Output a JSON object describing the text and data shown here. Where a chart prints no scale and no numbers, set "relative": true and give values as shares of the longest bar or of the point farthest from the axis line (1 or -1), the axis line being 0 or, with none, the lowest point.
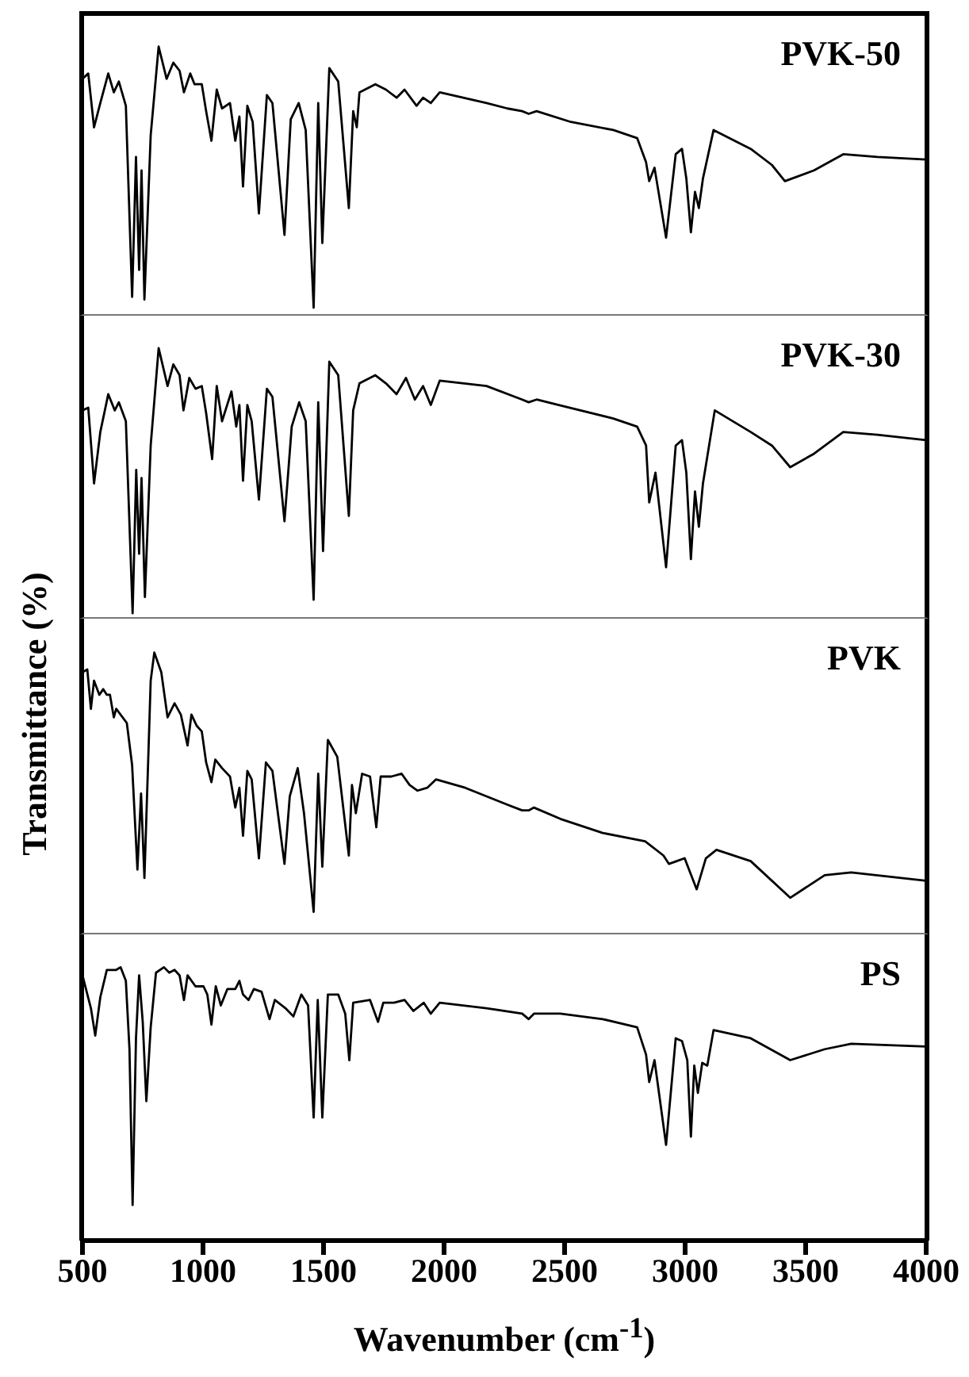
{
  "chart_data": [
    {
      "type": "line",
      "title": "PVK-50",
      "relative": true,
      "xlim": [
        500,
        4000
      ],
      "tick_labels": false,
      "marker": "none",
      "line_style": "solid",
      "x": [
        500,
        524,
        548,
        574,
        607,
        630,
        651,
        680,
        706,
        722,
        735,
        745,
        757,
        783,
        816,
        849,
        877,
        903,
        921,
        947,
        965,
        995,
        1013,
        1035,
        1057,
        1079,
        1112,
        1134,
        1151,
        1166,
        1184,
        1206,
        1232,
        1265,
        1288,
        1338,
        1364,
        1397,
        1426,
        1459,
        1478,
        1495,
        1524,
        1561,
        1605,
        1623,
        1638,
        1649,
        1715,
        1759,
        1803,
        1836,
        1886,
        1913,
        1945,
        1982,
        2176,
        2263,
        2324,
        2351,
        2384,
        2526,
        2702,
        2801,
        2838,
        2851,
        2873,
        2921,
        2961,
        2987,
        3005,
        3024,
        3041,
        3057,
        3074,
        3118,
        3272,
        3360,
        3414,
        3535,
        3656,
        3798,
        4000
      ],
      "series": [
        {
          "color": "#000000",
          "values": [
            0.88,
            0.9,
            0.7,
            0.79,
            0.9,
            0.83,
            0.87,
            0.78,
            0.07,
            0.59,
            0.17,
            0.54,
            0.06,
            0.67,
            1.0,
            0.88,
            0.94,
            0.91,
            0.83,
            0.9,
            0.86,
            0.86,
            0.76,
            0.65,
            0.84,
            0.77,
            0.79,
            0.65,
            0.74,
            0.48,
            0.78,
            0.72,
            0.38,
            0.82,
            0.79,
            0.3,
            0.73,
            0.79,
            0.69,
            0.03,
            0.79,
            0.27,
            0.92,
            0.87,
            0.4,
            0.76,
            0.7,
            0.83,
            0.86,
            0.84,
            0.81,
            0.84,
            0.78,
            0.81,
            0.79,
            0.83,
            0.79,
            0.77,
            0.76,
            0.75,
            0.76,
            0.72,
            0.69,
            0.66,
            0.57,
            0.5,
            0.55,
            0.29,
            0.6,
            0.62,
            0.51,
            0.31,
            0.46,
            0.4,
            0.51,
            0.69,
            0.62,
            0.56,
            0.5,
            0.54,
            0.6,
            0.59,
            0.58
          ]
        }
      ]
    },
    {
      "type": "line",
      "title": "PVK-30",
      "relative": true,
      "xlim": [
        500,
        4000
      ],
      "tick_labels": false,
      "marker": "none",
      "line_style": "solid",
      "x": [
        500,
        524,
        548,
        574,
        607,
        634,
        651,
        680,
        708,
        723,
        735,
        745,
        759,
        783,
        816,
        853,
        877,
        903,
        919,
        943,
        969,
        995,
        1013,
        1038,
        1057,
        1079,
        1118,
        1138,
        1151,
        1166,
        1184,
        1202,
        1232,
        1265,
        1288,
        1338,
        1368,
        1399,
        1426,
        1459,
        1478,
        1498,
        1524,
        1561,
        1605,
        1623,
        1649,
        1715,
        1759,
        1803,
        1842,
        1879,
        1913,
        1945,
        1982,
        2176,
        2324,
        2351,
        2384,
        2702,
        2801,
        2838,
        2851,
        2877,
        2921,
        2961,
        2987,
        3005,
        3024,
        3041,
        3057,
        3074,
        3123,
        3272,
        3360,
        3436,
        3535,
        3656,
        3798,
        4000
      ],
      "series": [
        {
          "color": "#000000",
          "values": [
            0.77,
            0.78,
            0.5,
            0.69,
            0.83,
            0.77,
            0.8,
            0.73,
            0.02,
            0.55,
            0.24,
            0.52,
            0.08,
            0.64,
            1.0,
            0.86,
            0.94,
            0.9,
            0.77,
            0.89,
            0.85,
            0.86,
            0.76,
            0.59,
            0.86,
            0.73,
            0.84,
            0.71,
            0.79,
            0.51,
            0.79,
            0.73,
            0.44,
            0.85,
            0.82,
            0.36,
            0.71,
            0.8,
            0.73,
            0.07,
            0.8,
            0.25,
            0.95,
            0.9,
            0.38,
            0.77,
            0.87,
            0.9,
            0.87,
            0.83,
            0.89,
            0.81,
            0.86,
            0.79,
            0.88,
            0.86,
            0.81,
            0.8,
            0.81,
            0.74,
            0.71,
            0.64,
            0.43,
            0.54,
            0.19,
            0.64,
            0.66,
            0.54,
            0.22,
            0.47,
            0.34,
            0.5,
            0.77,
            0.69,
            0.64,
            0.56,
            0.61,
            0.69,
            0.68,
            0.66
          ]
        }
      ]
    },
    {
      "type": "line",
      "title": "PVK",
      "ylabel": "Transmittance (%)",
      "relative": true,
      "xlim": [
        500,
        4000
      ],
      "tick_labels": false,
      "marker": "none",
      "line_style": "solid",
      "x": [
        500,
        520,
        535,
        548,
        570,
        586,
        601,
        614,
        630,
        640,
        684,
        706,
        728,
        743,
        757,
        772,
        783,
        798,
        827,
        853,
        882,
        908,
        936,
        952,
        974,
        995,
        1013,
        1035,
        1051,
        1079,
        1112,
        1134,
        1151,
        1166,
        1184,
        1202,
        1232,
        1261,
        1288,
        1338,
        1360,
        1393,
        1419,
        1459,
        1478,
        1495,
        1518,
        1557,
        1605,
        1618,
        1634,
        1660,
        1693,
        1719,
        1737,
        1781,
        1824,
        1857,
        1890,
        1930,
        1967,
        2088,
        2263,
        2324,
        2351,
        2373,
        2482,
        2658,
        2834,
        2910,
        2933,
        2965,
        2998,
        3048,
        3086,
        3130,
        3272,
        3436,
        3579,
        3689,
        4000
      ],
      "series": [
        {
          "color": "#000000",
          "values": [
            0.93,
            0.94,
            0.8,
            0.9,
            0.85,
            0.87,
            0.85,
            0.85,
            0.77,
            0.8,
            0.75,
            0.6,
            0.23,
            0.5,
            0.2,
            0.6,
            0.9,
            1.0,
            0.93,
            0.77,
            0.82,
            0.78,
            0.67,
            0.78,
            0.74,
            0.72,
            0.61,
            0.54,
            0.62,
            0.59,
            0.56,
            0.45,
            0.52,
            0.35,
            0.58,
            0.55,
            0.27,
            0.61,
            0.58,
            0.25,
            0.49,
            0.59,
            0.43,
            0.08,
            0.57,
            0.24,
            0.69,
            0.63,
            0.28,
            0.53,
            0.43,
            0.57,
            0.56,
            0.38,
            0.56,
            0.56,
            0.57,
            0.53,
            0.51,
            0.52,
            0.55,
            0.52,
            0.46,
            0.44,
            0.44,
            0.45,
            0.41,
            0.36,
            0.33,
            0.28,
            0.25,
            0.26,
            0.27,
            0.16,
            0.27,
            0.3,
            0.26,
            0.13,
            0.21,
            0.22,
            0.19
          ]
        }
      ]
    },
    {
      "type": "line",
      "title": "PS",
      "xlabel": "Wavenumber (cm$^{-1}$)",
      "relative": true,
      "xlim": [
        500,
        4000
      ],
      "xticks": [
        500,
        1000,
        1500,
        2000,
        2500,
        3000,
        3500,
        4000
      ],
      "tick_labels": "x",
      "marker": "none",
      "line_style": "solid",
      "x": [
        500,
        535,
        553,
        574,
        601,
        623,
        640,
        658,
        680,
        695,
        708,
        722,
        735,
        750,
        765,
        783,
        805,
        838,
        860,
        882,
        903,
        921,
        936,
        969,
        1002,
        1018,
        1035,
        1053,
        1074,
        1101,
        1134,
        1151,
        1166,
        1189,
        1211,
        1243,
        1276,
        1298,
        1342,
        1375,
        1408,
        1436,
        1459,
        1476,
        1495,
        1518,
        1561,
        1590,
        1607,
        1623,
        1693,
        1726,
        1748,
        1792,
        1836,
        1873,
        1916,
        1945,
        1982,
        2176,
        2324,
        2351,
        2373,
        2482,
        2658,
        2801,
        2838,
        2851,
        2873,
        2921,
        2961,
        2987,
        3009,
        3024,
        3038,
        3053,
        3071,
        3092,
        3118,
        3272,
        3436,
        3579,
        3689,
        4000
      ],
      "series": [
        {
          "color": "#000000",
          "values": [
            0.97,
            0.85,
            0.75,
            0.89,
            0.99,
            0.99,
            0.99,
            1.0,
            0.95,
            0.7,
            0.13,
            0.74,
            0.97,
            0.8,
            0.51,
            0.78,
            0.98,
            1.0,
            0.98,
            0.99,
            0.97,
            0.88,
            0.97,
            0.93,
            0.93,
            0.9,
            0.79,
            0.93,
            0.86,
            0.92,
            0.92,
            0.95,
            0.9,
            0.88,
            0.92,
            0.91,
            0.81,
            0.88,
            0.85,
            0.82,
            0.9,
            0.86,
            0.45,
            0.88,
            0.45,
            0.9,
            0.9,
            0.83,
            0.66,
            0.87,
            0.88,
            0.8,
            0.87,
            0.87,
            0.88,
            0.84,
            0.87,
            0.83,
            0.87,
            0.85,
            0.83,
            0.81,
            0.83,
            0.83,
            0.81,
            0.78,
            0.68,
            0.58,
            0.66,
            0.35,
            0.74,
            0.73,
            0.66,
            0.38,
            0.64,
            0.54,
            0.65,
            0.64,
            0.77,
            0.74,
            0.66,
            0.7,
            0.72,
            0.71
          ]
        }
      ]
    }
  ]
}
